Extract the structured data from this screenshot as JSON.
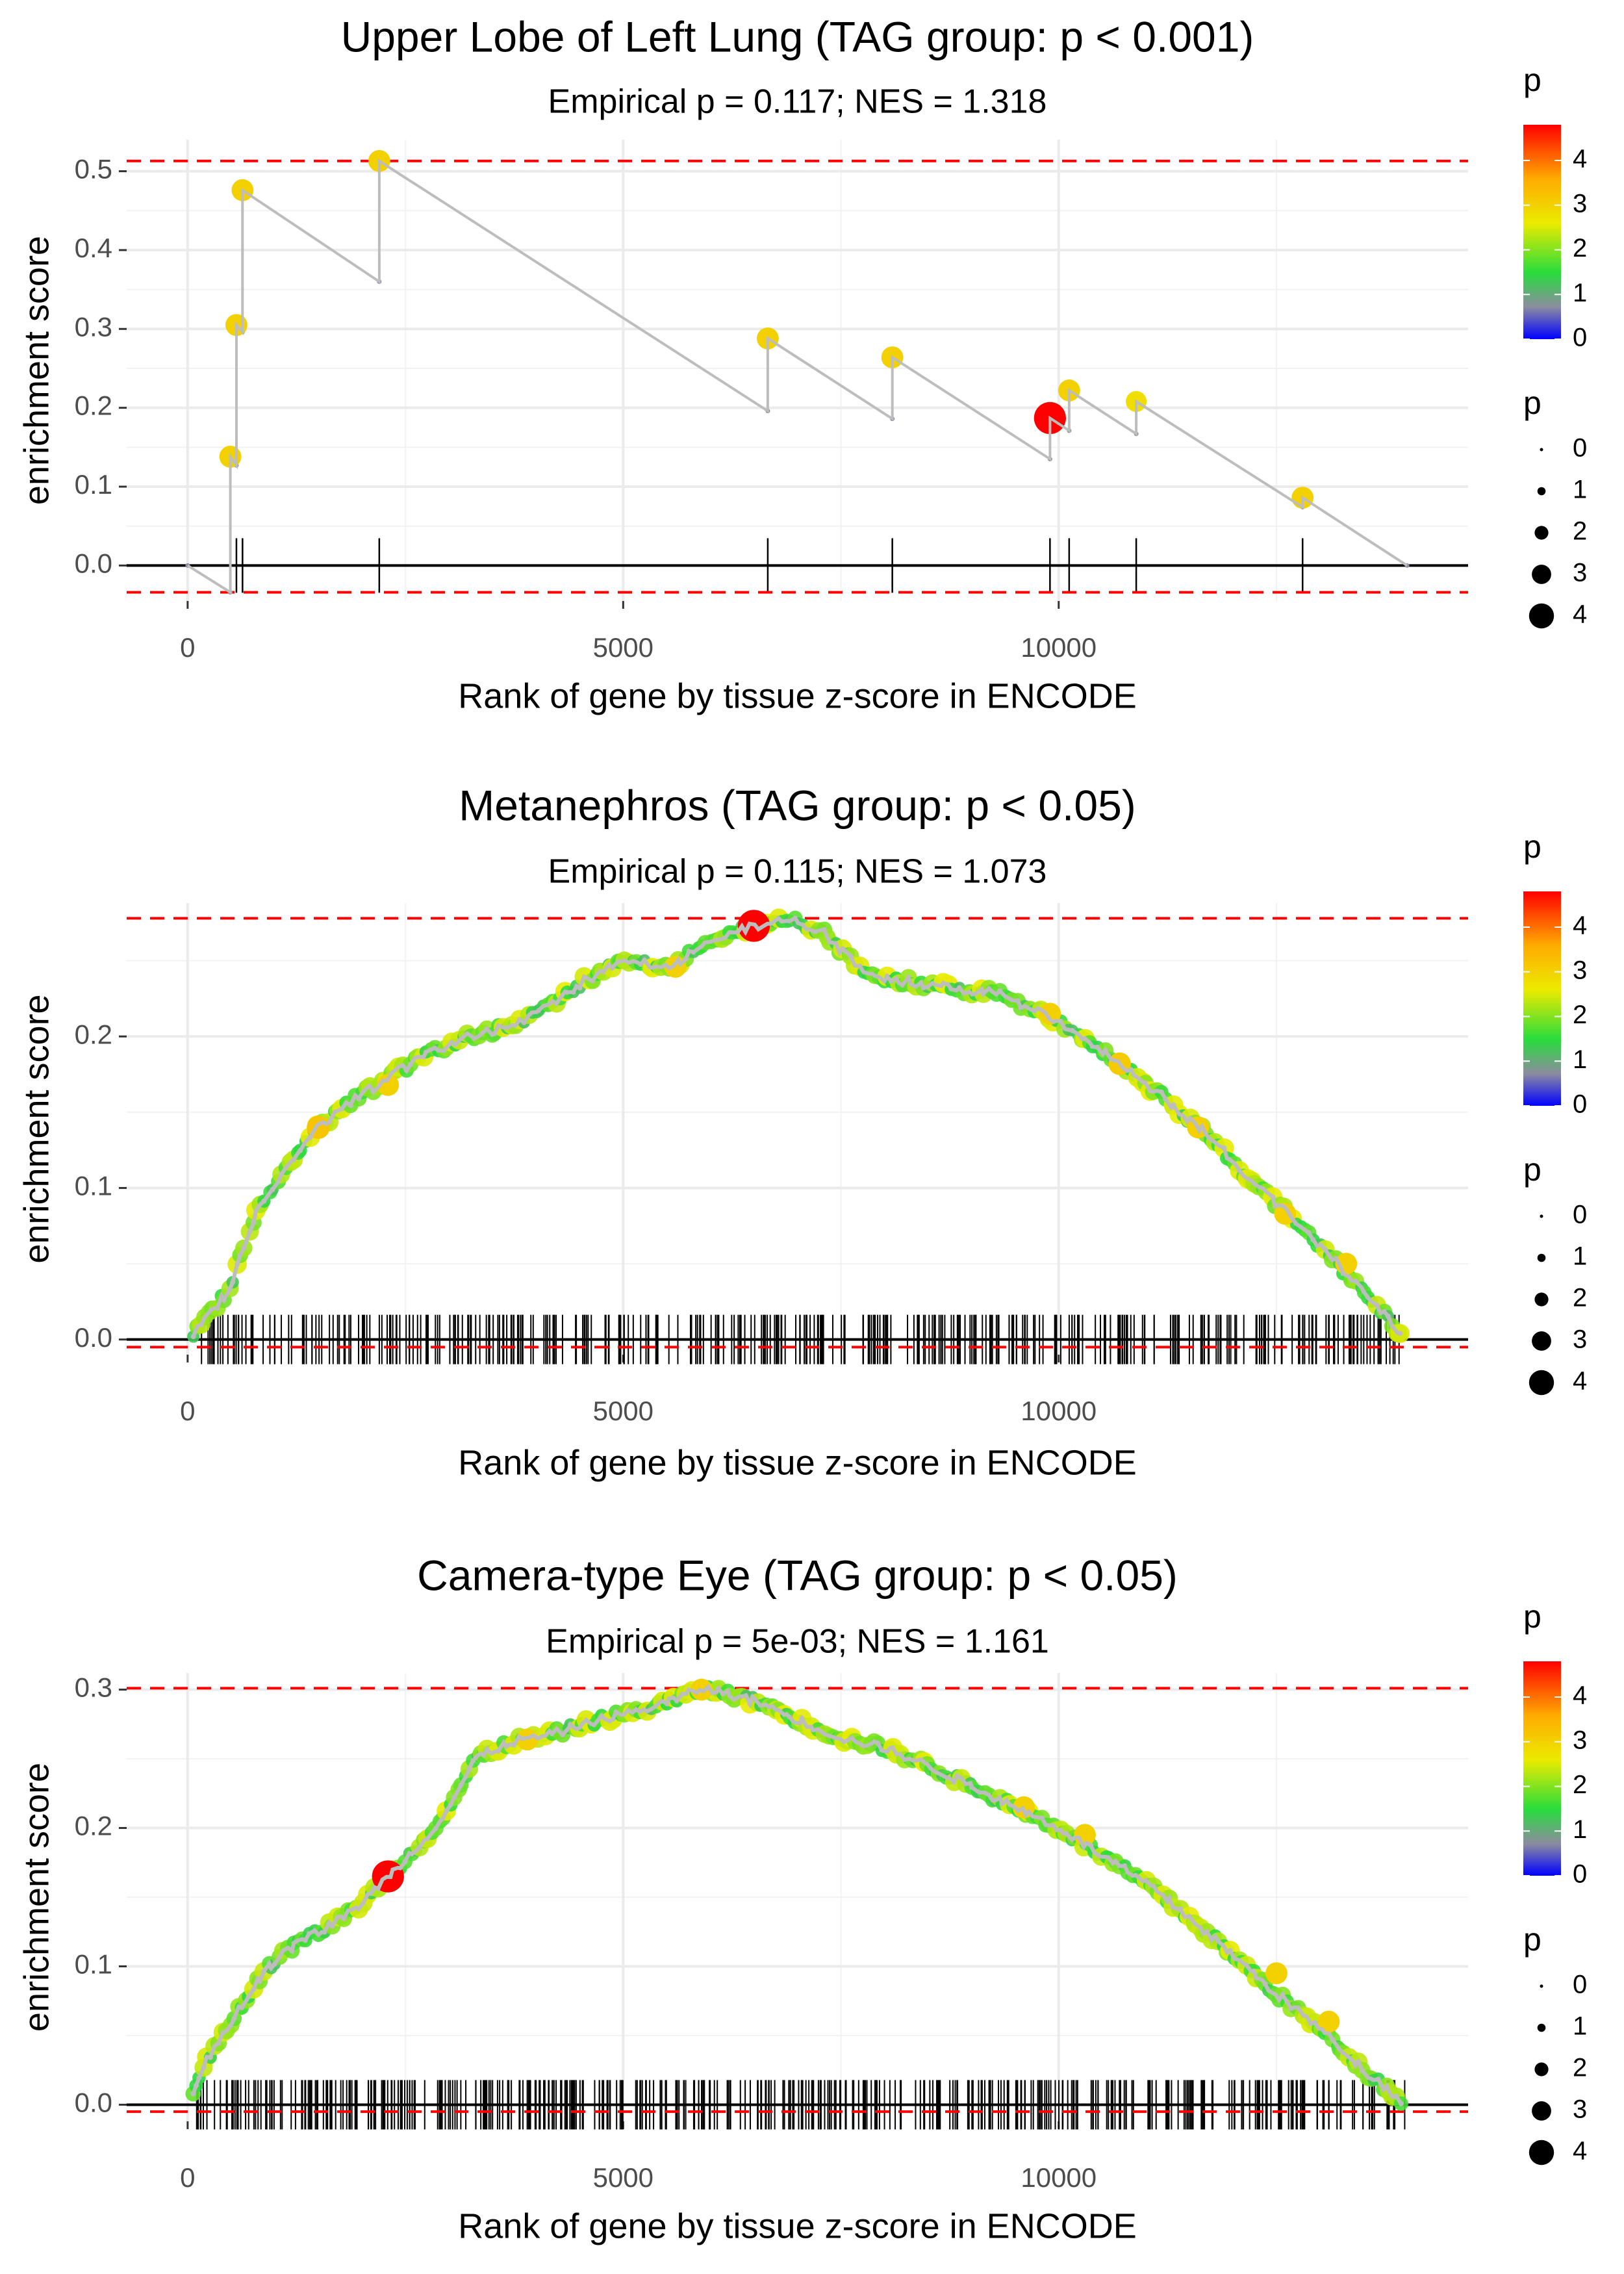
{
  "chart_data": [
    {
      "type": "line",
      "title": "Upper Lobe of Left Lung (TAG group: p < 0.001)",
      "subtitle": "Empirical p = 0.117; NES = 1.318",
      "xlabel": "Rank of gene by tissue z-score in ENCODE",
      "ylabel": "enrichment score",
      "xlim": [
        -700,
        14700
      ],
      "ylim": [
        -0.045,
        0.54
      ],
      "x_ticks": [
        0,
        5000,
        10000
      ],
      "x_tick_labels": [
        "0",
        "5000",
        "10000"
      ],
      "y_ticks": [
        0,
        0.1,
        0.2,
        0.3,
        0.4,
        0.5
      ],
      "y_tick_labels": [
        "0.0",
        "0.1",
        "0.2",
        "0.3",
        "0.4",
        "0.5"
      ],
      "max_es_line": 0.513,
      "min_es_line": -0.034,
      "running_score": {
        "x": [
          0,
          490,
          490,
          560,
          560,
          630,
          630,
          2200,
          2200,
          6660,
          6660,
          8090,
          8090,
          9900,
          9900,
          10120,
          10120,
          10890,
          10890,
          12800,
          12800,
          14000
        ],
        "y": [
          0,
          -0.034,
          0.138,
          0.127,
          0.305,
          0.296,
          0.476,
          0.36,
          0.513,
          0.196,
          0.288,
          0.186,
          0.264,
          0.135,
          0.187,
          0.171,
          0.222,
          0.167,
          0.208,
          0.074,
          0.086,
          0
        ]
      },
      "hits": {
        "x": [
          490,
          560,
          630,
          2200,
          6660,
          8090,
          9900,
          10120,
          10890,
          12800
        ],
        "y": [
          0.138,
          0.305,
          0.476,
          0.513,
          0.288,
          0.264,
          0.187,
          0.222,
          0.208,
          0.086
        ],
        "p": [
          3.0,
          3.0,
          3.0,
          3.0,
          3.0,
          3.0,
          4.8,
          3.0,
          2.8,
          3.0
        ]
      },
      "legend_color": {
        "title": "p",
        "labels": [
          "4",
          "3",
          "2",
          "1",
          "0"
        ]
      },
      "legend_size": {
        "title": "p",
        "labels": [
          "0",
          "1",
          "2",
          "3",
          "4"
        ]
      }
    },
    {
      "type": "line",
      "title": "Metanephros (TAG group: p < 0.05)",
      "subtitle": "Empirical p = 0.115; NES = 1.073",
      "xlabel": "Rank of gene by tissue z-score in ENCODE",
      "ylabel": "enrichment score",
      "xlim": [
        -700,
        14700
      ],
      "ylim": [
        -0.01,
        0.288
      ],
      "x_ticks": [
        0,
        5000,
        10000
      ],
      "x_tick_labels": [
        "0",
        "5000",
        "10000"
      ],
      "y_ticks": [
        0,
        0.1,
        0.2
      ],
      "y_tick_labels": [
        "0.0",
        "0.1",
        "0.2"
      ],
      "max_es_line": 0.278,
      "min_es_line": -0.005,
      "running_score": {
        "x": [
          0,
          300,
          500,
          600,
          700,
          800,
          1000,
          1300,
          1500,
          1800,
          2100,
          2500,
          2800,
          3200,
          3600,
          4000,
          4500,
          5000,
          5500,
          6000,
          6500,
          6900,
          7300,
          7800,
          8300,
          8800,
          9300,
          9800,
          10300,
          10800,
          11300,
          11800,
          12300,
          12800,
          13200,
          13600,
          14000
        ],
        "y": [
          0,
          0.02,
          0.035,
          0.055,
          0.07,
          0.085,
          0.1,
          0.125,
          0.14,
          0.155,
          0.165,
          0.18,
          0.19,
          0.2,
          0.205,
          0.215,
          0.235,
          0.25,
          0.245,
          0.262,
          0.273,
          0.278,
          0.268,
          0.24,
          0.236,
          0.232,
          0.228,
          0.215,
          0.198,
          0.178,
          0.155,
          0.13,
          0.1,
          0.075,
          0.05,
          0.025,
          0
        ]
      },
      "hit_line_count": 380,
      "dense_points": 300,
      "hits_highlight": {
        "x": [
          1500,
          2300,
          5600,
          6500,
          9900,
          10700,
          11600,
          12600,
          13300
        ],
        "y": [
          0.14,
          0.168,
          0.246,
          0.273,
          0.215,
          0.182,
          0.14,
          0.083,
          0.05
        ],
        "p": [
          3.2,
          3.0,
          3.0,
          4.8,
          3.0,
          3.1,
          3.0,
          3.0,
          3.0
        ]
      },
      "legend_color": {
        "title": "p",
        "labels": [
          "4",
          "3",
          "2",
          "1",
          "0"
        ]
      },
      "legend_size": {
        "title": "p",
        "labels": [
          "0",
          "1",
          "2",
          "3",
          "4"
        ]
      }
    },
    {
      "type": "line",
      "title": "Camera-type Eye (TAG group: p < 0.05)",
      "subtitle": "Empirical p = 5e-03; NES = 1.161",
      "xlabel": "Rank of gene by tissue z-score in ENCODE",
      "ylabel": "enrichment score",
      "xlim": [
        -700,
        14700
      ],
      "ylim": [
        -0.012,
        0.312
      ],
      "x_ticks": [
        0,
        5000,
        10000
      ],
      "x_tick_labels": [
        "0",
        "5000",
        "10000"
      ],
      "y_ticks": [
        0,
        0.1,
        0.2,
        0.3
      ],
      "y_tick_labels": [
        "0.0",
        "0.1",
        "0.2",
        "0.3"
      ],
      "max_es_line": 0.301,
      "min_es_line": -0.005,
      "running_score": {
        "x": [
          0,
          200,
          500,
          800,
          1100,
          1500,
          1900,
          2300,
          2700,
          3000,
          3300,
          3700,
          4200,
          4700,
          5200,
          5600,
          5900,
          6200,
          6600,
          7000,
          7500,
          8000,
          8500,
          9000,
          9500,
          10000,
          10500,
          11000,
          11500,
          12000,
          12500,
          13000,
          13500,
          14000
        ],
        "y": [
          0,
          0.03,
          0.06,
          0.09,
          0.11,
          0.125,
          0.14,
          0.165,
          0.19,
          0.215,
          0.25,
          0.262,
          0.268,
          0.278,
          0.285,
          0.293,
          0.301,
          0.297,
          0.29,
          0.278,
          0.265,
          0.258,
          0.245,
          0.23,
          0.215,
          0.2,
          0.18,
          0.16,
          0.135,
          0.108,
          0.08,
          0.055,
          0.025,
          0
        ]
      },
      "hit_line_count": 460,
      "dense_points": 320,
      "hits_highlight": {
        "x": [
          2300,
          3900,
          5900,
          9600,
          10300,
          12500,
          13100
        ],
        "y": [
          0.165,
          0.264,
          0.3,
          0.215,
          0.195,
          0.095,
          0.06
        ],
        "p": [
          4.8,
          3.0,
          3.0,
          3.0,
          3.0,
          3.0,
          3.0
        ]
      },
      "legend_color": {
        "title": "p",
        "labels": [
          "4",
          "3",
          "2",
          "1",
          "0"
        ]
      },
      "legend_size": {
        "title": "p",
        "labels": [
          "0",
          "1",
          "2",
          "3",
          "4"
        ]
      }
    }
  ]
}
